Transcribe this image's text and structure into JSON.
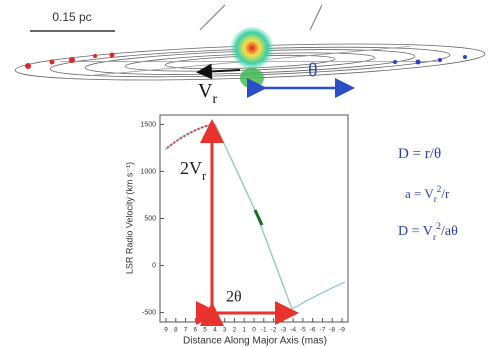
{
  "scale_bar": "0.15 pc",
  "disk": {
    "theta_label": "θ",
    "vr_label": [
      {
        "text": "V"
      },
      {
        "text": "r",
        "pos": "sub"
      }
    ]
  },
  "plot": {
    "y_label": "LSR Radio Velocity (km s⁻¹)",
    "x_label": "Distance Along Major Axis (mas)",
    "ylim": [
      -600,
      1600
    ],
    "yticks": [
      1500,
      1000,
      500,
      0,
      -500
    ],
    "xticks": [
      9,
      8,
      7,
      6,
      5,
      4,
      3,
      2,
      1,
      0,
      -1,
      -2,
      -3,
      -4,
      -5,
      -6,
      -7,
      -8,
      -9
    ],
    "two_vr": [
      {
        "text": "2V"
      },
      {
        "text": "r",
        "pos": "sub"
      }
    ],
    "two_theta": "2θ"
  },
  "equations": [
    [
      {
        "text": "D = r/θ"
      }
    ],
    [
      {
        "text": "a = V"
      },
      {
        "text": "r",
        "pos": "sub"
      },
      {
        "text": "2",
        "pos": "sup"
      },
      {
        "text": "/r"
      }
    ],
    [
      {
        "text": "D = V"
      },
      {
        "text": "r",
        "pos": "sub"
      },
      {
        "text": "2",
        "pos": "sup"
      },
      {
        "text": "/aθ"
      }
    ]
  ]
}
